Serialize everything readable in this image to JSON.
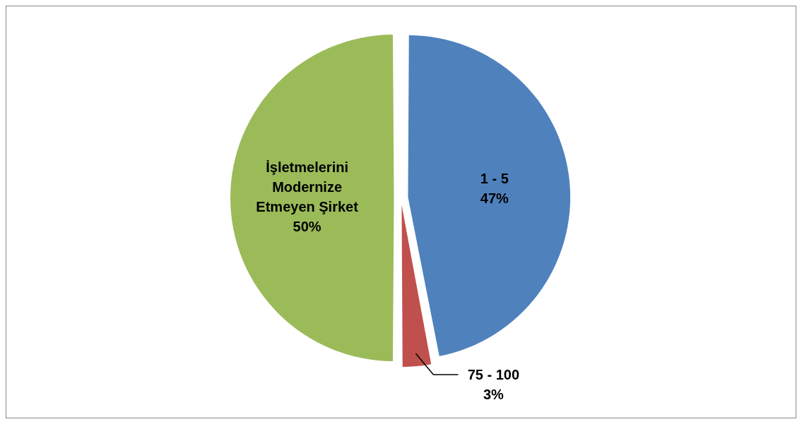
{
  "chart_data": {
    "type": "pie",
    "categories": [
      "1 - 5",
      "75 - 100",
      "İşletmelerini Modernize Etmeyen Şirket"
    ],
    "values": [
      47,
      3,
      50
    ],
    "colors": [
      "#4f81bd",
      "#c0504d",
      "#9bbb59"
    ],
    "value_labels": [
      "47%",
      "3%",
      "50%"
    ],
    "legend": false
  }
}
